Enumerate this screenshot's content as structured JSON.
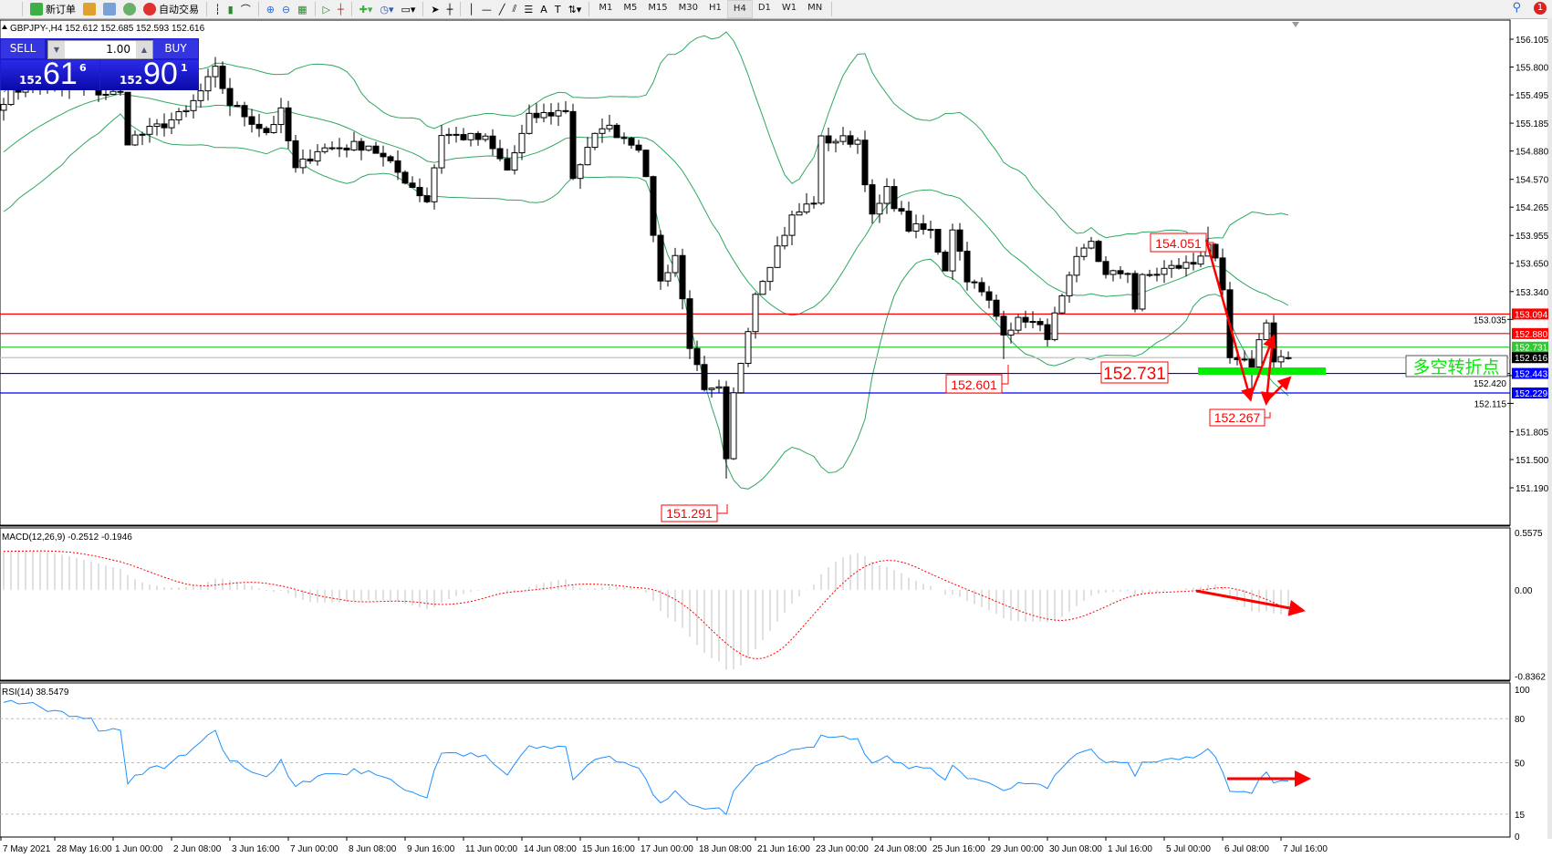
{
  "toolbar": {
    "new_order": "新订单",
    "auto_trading": "自动交易",
    "timeframes": [
      "M1",
      "M5",
      "M15",
      "M30",
      "H1",
      "H4",
      "D1",
      "W1",
      "MN"
    ],
    "active_timeframe": "H4",
    "notification_count": "1"
  },
  "chart": {
    "symbol_line": "GBPJPY-,H4  152.612 152.685 152.593 152.616",
    "last_bar": {
      "open": 152.612,
      "high": 152.685,
      "low": 152.593,
      "close": 152.616
    }
  },
  "trade_panel": {
    "sell_label": "SELL",
    "buy_label": "BUY",
    "volume": "1.00",
    "sell_price": {
      "prefix": "152",
      "main": "61",
      "sup": "6"
    },
    "buy_price": {
      "prefix": "152",
      "main": "90",
      "sup": "1"
    }
  },
  "price_axis": {
    "ticks": [
      "156.105",
      "155.800",
      "155.495",
      "155.185",
      "154.880",
      "154.570",
      "154.265",
      "153.955",
      "153.650",
      "153.340",
      "153.035",
      "152.420",
      "152.115",
      "151.805",
      "151.500",
      "151.190"
    ]
  },
  "levels": [
    {
      "price": "153.094",
      "color": "#ff0000",
      "text_color": "#ffffff"
    },
    {
      "price": "152.880",
      "color": "#ff0000",
      "text_color": "#ffffff"
    },
    {
      "price": "152.731",
      "color": "#32c832",
      "text_color": "#ffffff"
    },
    {
      "price": "152.616",
      "color": "#000000",
      "text_color": "#ffffff",
      "line_color": "#c0c0c0"
    },
    {
      "price": "152.443",
      "color": "#0000ff",
      "text_color": "#ffffff"
    },
    {
      "price": "152.229",
      "color": "#0000ff",
      "text_color": "#ffffff"
    }
  ],
  "annotations": {
    "high": "154.051",
    "low": "151.291",
    "support": "152.601",
    "pivot": "152.731",
    "recent_low": "152.267",
    "pivot_label": "多空转折点"
  },
  "macd": {
    "label": "MACD(12,26,9) -0.2512 -0.1946",
    "ticks": [
      "0.5575",
      "0.00",
      "-0.8362"
    ]
  },
  "rsi": {
    "label": "RSI(14) 38.5479",
    "ticks": [
      "100",
      "80",
      "50",
      "15",
      "0"
    ],
    "levels": [
      80,
      50,
      15
    ]
  },
  "time_axis": [
    "7 May 2021",
    "28 May 16:00",
    "1 Jun 00:00",
    "2 Jun 08:00",
    "3 Jun 16:00",
    "7 Jun 00:00",
    "8 Jun 08:00",
    "9 Jun 16:00",
    "11 Jun 00:00",
    "14 Jun 08:00",
    "15 Jun 16:00",
    "17 Jun 00:00",
    "18 Jun 08:00",
    "21 Jun 16:00",
    "23 Jun 00:00",
    "24 Jun 08:00",
    "25 Jun 16:00",
    "29 Jun 00:00",
    "30 Jun 08:00",
    "1 Jul 16:00",
    "5 Jul 00:00",
    "6 Jul 08:00",
    "7 Jul 16:00"
  ],
  "price_path": [
    [
      0,
      155.45
    ],
    [
      3,
      155.6
    ],
    [
      10,
      155.55
    ],
    [
      16,
      155.5
    ],
    [
      17,
      155.0
    ],
    [
      20,
      155.1
    ],
    [
      25,
      155.3
    ],
    [
      29,
      155.76
    ],
    [
      31,
      155.4
    ],
    [
      36,
      155.09
    ],
    [
      38,
      155.3
    ],
    [
      40,
      154.67
    ],
    [
      43,
      154.9
    ],
    [
      50,
      154.95
    ],
    [
      58,
      154.34
    ],
    [
      60,
      155.07
    ],
    [
      66,
      155.0
    ],
    [
      69,
      154.67
    ],
    [
      72,
      155.24
    ],
    [
      77,
      155.33
    ],
    [
      78,
      154.6
    ],
    [
      82,
      155.17
    ],
    [
      87,
      154.94
    ],
    [
      88,
      154.54
    ],
    [
      90,
      153.44
    ],
    [
      92,
      153.74
    ],
    [
      94,
      152.76
    ],
    [
      96,
      152.22
    ],
    [
      98,
      152.25
    ],
    [
      99,
      151.46
    ],
    [
      100,
      152.2
    ],
    [
      103,
      153.34
    ],
    [
      108,
      154.15
    ],
    [
      111,
      154.34
    ],
    [
      112,
      155.0
    ],
    [
      117,
      155.0
    ],
    [
      119,
      154.14
    ],
    [
      121,
      154.44
    ],
    [
      124,
      154.04
    ],
    [
      127,
      154.0
    ],
    [
      129,
      153.6
    ],
    [
      130,
      154.05
    ],
    [
      132,
      153.5
    ],
    [
      135,
      153.22
    ],
    [
      137,
      152.92
    ],
    [
      140,
      153.05
    ],
    [
      143,
      152.87
    ],
    [
      145,
      153.25
    ],
    [
      147,
      153.67
    ],
    [
      149,
      153.9
    ],
    [
      151,
      153.5
    ],
    [
      154,
      153.57
    ],
    [
      155,
      153.16
    ],
    [
      156,
      153.48
    ],
    [
      159,
      153.58
    ],
    [
      163,
      153.65
    ],
    [
      165,
      153.88
    ],
    [
      166,
      153.65
    ],
    [
      167,
      153.3
    ],
    [
      168,
      152.6
    ],
    [
      169,
      152.55
    ],
    [
      171,
      152.55
    ],
    [
      173,
      153.04
    ],
    [
      174,
      152.57
    ],
    [
      175,
      152.62
    ],
    [
      176,
      152.616
    ]
  ],
  "colors": {
    "bollinger": "#2fa860",
    "macd_histogram": "#c0c0c0",
    "macd_signal": "#ff0000",
    "rsi_line": "#1e90ff",
    "annotation": "#ff0000",
    "pivot_bar": "#00ee00"
  }
}
